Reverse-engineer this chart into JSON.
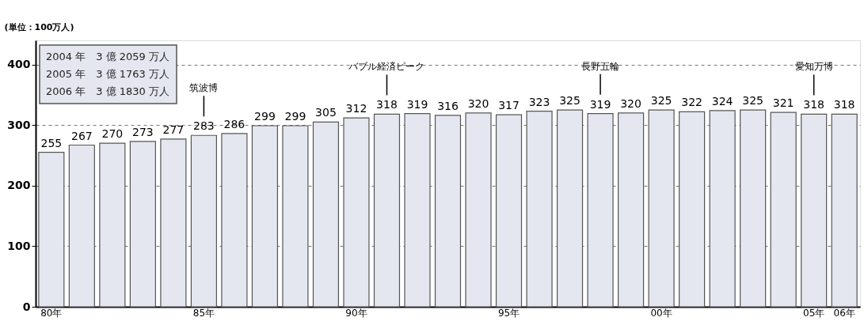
{
  "chart_data": {
    "type": "bar",
    "ylabel": "(単位：100万人)",
    "categories": [
      "80年",
      null,
      null,
      null,
      null,
      "85年",
      null,
      null,
      null,
      null,
      "90年",
      null,
      null,
      null,
      null,
      "95年",
      null,
      null,
      null,
      null,
      "00年",
      null,
      null,
      null,
      null,
      "05年",
      "06年"
    ],
    "values": [
      255,
      267,
      270,
      273,
      277,
      283,
      286,
      299,
      299,
      305,
      312,
      318,
      319,
      316,
      320,
      317,
      323,
      325,
      319,
      320,
      325,
      322,
      324,
      325,
      321,
      318,
      318
    ],
    "color": "#e4e7ef",
    "ylim": [
      0,
      440
    ],
    "yticks": [
      0,
      100,
      200,
      300,
      400
    ],
    "grid": "y",
    "data_labels": true,
    "annotations": [
      "2004 年　3 億 2059 万人",
      "2005 年　3 億 1763 万人",
      "2006 年　3 億 1830 万人",
      "筑波博",
      "バブル経済ピーク",
      "長野五輪",
      "愛知万博"
    ]
  }
}
